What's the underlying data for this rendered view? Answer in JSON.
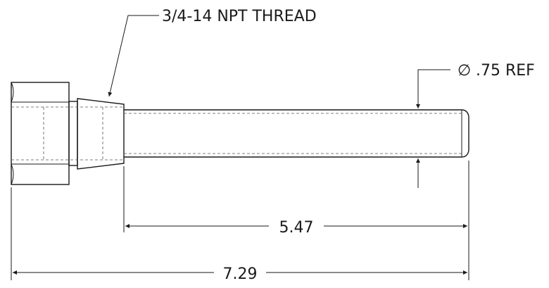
{
  "drawing": {
    "thread_callout": "3/4-14 NPT THREAD",
    "diameter_symbol": "∅",
    "diameter_callout": ".75 REF",
    "dim_shaft_length": "5.47",
    "dim_overall_length": "7.29"
  }
}
